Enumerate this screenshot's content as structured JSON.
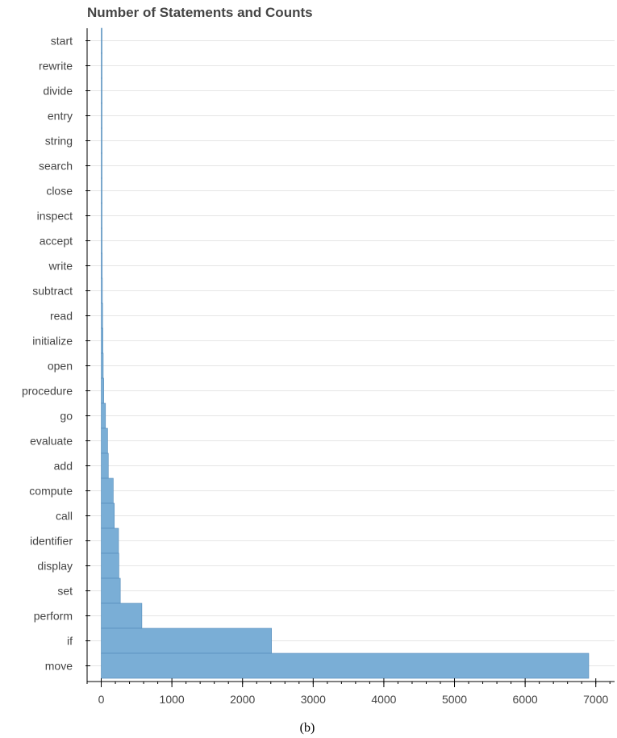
{
  "caption": "(b)",
  "chart_data": {
    "type": "bar",
    "orientation": "horizontal",
    "title": "Number of Statements and Counts",
    "xlabel": "",
    "ylabel": "",
    "categories": [
      "start",
      "rewrite",
      "divide",
      "entry",
      "string",
      "search",
      "close",
      "inspect",
      "accept",
      "write",
      "subtract",
      "read",
      "initialize",
      "open",
      "procedure",
      "go",
      "evaluate",
      "add",
      "compute",
      "call",
      "identifier",
      "display",
      "set",
      "perform",
      "if",
      "move"
    ],
    "values": [
      2,
      3,
      4,
      5,
      6,
      7,
      8,
      10,
      12,
      14,
      16,
      20,
      24,
      28,
      35,
      60,
      90,
      100,
      170,
      185,
      245,
      250,
      270,
      575,
      2410,
      6900
    ],
    "xlim": [
      -200,
      7300
    ],
    "xticks": [
      0,
      1000,
      2000,
      3000,
      4000,
      5000,
      6000,
      7000
    ],
    "minor_xtick_step": 200,
    "grid": {
      "horizontal": true,
      "vertical": false
    },
    "legend": "none",
    "colors": {
      "bar_fill": "#7aaed6",
      "bar_edge": "#4f88b8",
      "grid": "#e5e5e5",
      "axis": "#000000",
      "text": "#444444"
    }
  }
}
